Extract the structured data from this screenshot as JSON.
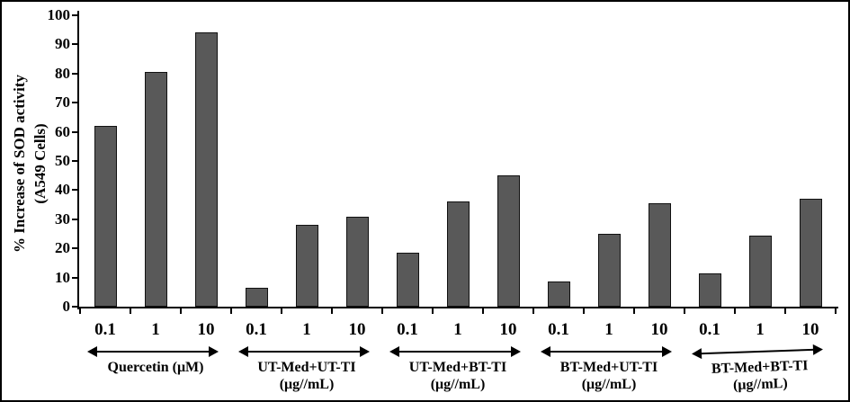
{
  "figure": {
    "background": "#ffffff",
    "border_color": "#000000",
    "text_color": "#000000"
  },
  "chart_data": {
    "type": "bar",
    "title": "",
    "ylabel_lines": [
      "% Increase of SOD activity",
      "(A549 Cells)"
    ],
    "ylim": [
      0,
      100
    ],
    "y_ticks": [
      0,
      10,
      20,
      30,
      40,
      50,
      60,
      70,
      80,
      90,
      100
    ],
    "grid": false,
    "legend": null,
    "bar_color": "#595959",
    "bar_border_color": "#111111",
    "groups": [
      {
        "label_lines": [
          "Quercetin (μM)"
        ],
        "categories": [
          "0.1",
          "1",
          "10"
        ],
        "values": [
          62,
          80.5,
          94
        ]
      },
      {
        "label_lines": [
          "UT-Med+UT-TI",
          "(μg//mL)"
        ],
        "categories": [
          "0.1",
          "1",
          "10"
        ],
        "values": [
          6.5,
          28,
          31
        ]
      },
      {
        "label_lines": [
          "UT-Med+BT-TI",
          "(μg//mL)"
        ],
        "categories": [
          "0.1",
          "1",
          "10"
        ],
        "values": [
          18.5,
          36,
          45
        ]
      },
      {
        "label_lines": [
          "BT-Med+UT-TI",
          "(μg//mL)"
        ],
        "categories": [
          "0.1",
          "1",
          "10"
        ],
        "values": [
          8.5,
          25,
          35.5
        ]
      },
      {
        "label_lines": [
          "BT-Med+BT-TI",
          "(μg//mL)"
        ],
        "categories": [
          "0.1",
          "1",
          "10"
        ],
        "values": [
          11.5,
          24.5,
          37
        ]
      }
    ]
  }
}
